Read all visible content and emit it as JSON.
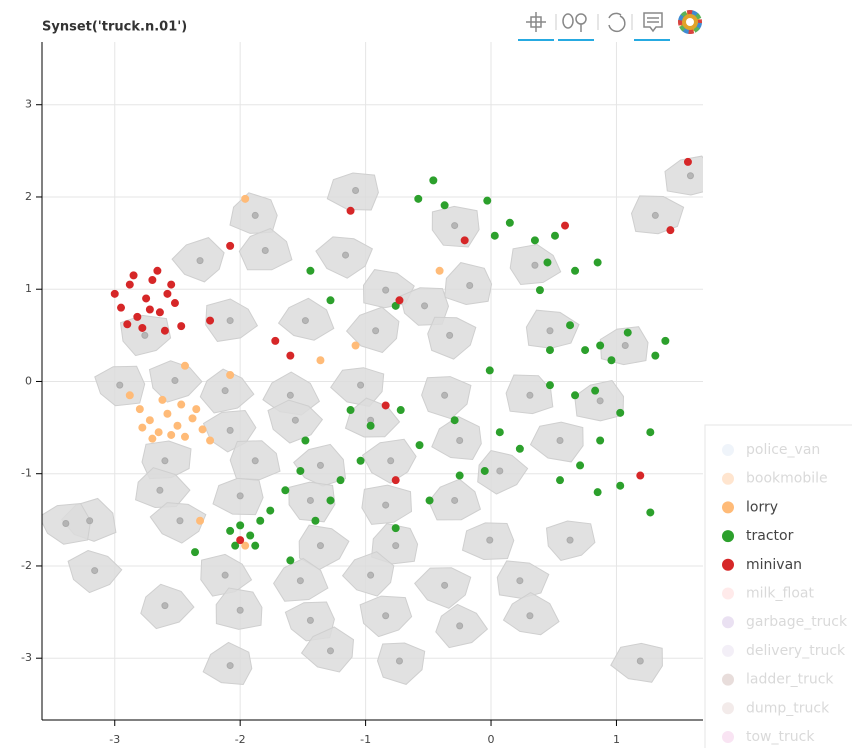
{
  "chart_data": {
    "type": "scatter",
    "title": "Synset('truck.n.01')",
    "xlim": [
      -3.58,
      1.69
    ],
    "ylim": [
      -3.67,
      3.68
    ],
    "xticks": [
      -3,
      -2,
      -1,
      0,
      1
    ],
    "yticks": [
      -3,
      -2,
      -1,
      0,
      1,
      2,
      3
    ],
    "grid": true,
    "series": [
      {
        "color": "#999999",
        "x": [
          -1.88,
          -1.08,
          -0.29,
          0.35,
          -1.8,
          -2.32,
          -1.16,
          -0.84,
          -0.17,
          -0.53,
          -2.76,
          -2.08,
          -1.48,
          -0.92,
          -0.33,
          0.47,
          1.07,
          -2.96,
          -2.52,
          -2.12,
          -1.6,
          -1.04,
          -0.37,
          0.31,
          0.87,
          -2.08,
          -1.56,
          -0.96,
          -0.25,
          0.55,
          -2.6,
          -1.88,
          -1.36,
          -0.8,
          0.07,
          -2.64,
          -2.0,
          -1.44,
          -0.84,
          -0.29,
          -3.2,
          -2.48,
          -1.36,
          -0.76,
          -0.01,
          0.63,
          -2.12,
          -1.52,
          -0.96,
          -0.37,
          0.23,
          -2.0,
          -1.44,
          -0.84,
          -0.25,
          0.31,
          -1.28,
          -0.73,
          1.31,
          1.59,
          -3.39,
          -3.16,
          -2.6,
          -2.08,
          1.19
        ],
        "y": [
          1.8,
          2.07,
          1.69,
          1.26,
          1.42,
          1.31,
          1.37,
          0.99,
          1.04,
          0.82,
          0.5,
          0.66,
          0.66,
          0.55,
          0.5,
          0.55,
          0.39,
          -0.04,
          0.01,
          -0.1,
          -0.15,
          -0.04,
          -0.15,
          -0.15,
          -0.21,
          -0.53,
          -0.42,
          -0.42,
          -0.64,
          -0.64,
          -0.86,
          -0.86,
          -0.91,
          -0.86,
          -0.97,
          -1.18,
          -1.24,
          -1.29,
          -1.34,
          -1.29,
          -1.51,
          -1.51,
          -1.78,
          -1.78,
          -1.72,
          -1.72,
          -2.1,
          -2.16,
          -2.1,
          -2.21,
          -2.16,
          -2.48,
          -2.59,
          -2.54,
          -2.65,
          -2.54,
          -2.92,
          -3.03,
          1.8,
          2.23,
          -1.54,
          -2.05,
          -2.43,
          -3.08,
          -3.03
        ]
      },
      {
        "name": "police_van",
        "color": "#aec7e8",
        "visible": false,
        "x": [],
        "y": []
      },
      {
        "name": "bookmobile",
        "color": "#ff7f0e",
        "visible": false,
        "x": [],
        "y": []
      },
      {
        "name": "lorry",
        "color": "#ffbb78",
        "visible": true,
        "x": [
          -2.88,
          -2.8,
          -2.72,
          -2.65,
          -2.58,
          -2.5,
          -2.44,
          -2.38,
          -2.3,
          -2.24,
          -2.78,
          -2.62,
          -2.47,
          -2.35,
          -2.7,
          -2.55,
          -1.96,
          -2.44,
          -2.08,
          -1.36,
          -1.08,
          -0.41,
          -2.32,
          -1.96
        ],
        "y": [
          -0.15,
          -0.3,
          -0.42,
          -0.55,
          -0.35,
          -0.48,
          -0.6,
          -0.4,
          -0.52,
          -0.64,
          -0.5,
          -0.2,
          -0.25,
          -0.3,
          -0.62,
          -0.58,
          1.98,
          0.17,
          0.07,
          0.23,
          0.39,
          1.2,
          -1.51,
          -1.78
        ]
      },
      {
        "name": "tractor",
        "color": "#2ca02c",
        "visible": true,
        "x": [
          -0.46,
          -0.58,
          -0.37,
          -0.03,
          0.15,
          0.03,
          0.35,
          0.51,
          0.45,
          0.67,
          0.85,
          0.39,
          -1.44,
          -1.28,
          -0.76,
          0.47,
          0.63,
          0.75,
          0.87,
          1.09,
          0.96,
          1.31,
          1.39,
          -0.01,
          0.47,
          0.67,
          0.83,
          1.03,
          1.27,
          0.87,
          0.71,
          0.55,
          0.85,
          1.27,
          0.23,
          0.07,
          -0.05,
          -0.29,
          -0.57,
          -0.72,
          -0.96,
          -1.12,
          -1.04,
          -1.2,
          -1.28,
          -1.4,
          -1.48,
          -1.52,
          -1.64,
          -1.76,
          -2.0,
          -2.08,
          -1.92,
          -1.84,
          -2.04,
          -1.88,
          -2.36,
          -1.6,
          -0.76,
          -0.49,
          -0.25,
          1.03
        ],
        "y": [
          2.18,
          1.98,
          1.91,
          1.96,
          1.72,
          1.58,
          1.53,
          1.58,
          1.29,
          1.2,
          1.29,
          0.99,
          1.2,
          0.88,
          0.82,
          0.34,
          0.61,
          0.34,
          0.39,
          0.53,
          0.23,
          0.28,
          0.44,
          0.12,
          -0.04,
          -0.15,
          -0.1,
          -0.34,
          -0.55,
          -0.64,
          -0.91,
          -1.07,
          -1.2,
          -1.42,
          -0.73,
          -0.55,
          -0.97,
          -0.42,
          -0.69,
          -0.31,
          -0.48,
          -0.31,
          -0.86,
          -1.07,
          -1.29,
          -1.51,
          -0.64,
          -0.97,
          -1.18,
          -1.4,
          -1.56,
          -1.62,
          -1.67,
          -1.51,
          -1.78,
          -1.78,
          -1.85,
          -1.94,
          -1.59,
          -1.29,
          -1.02,
          -1.13
        ]
      },
      {
        "name": "minivan",
        "color": "#d62728",
        "visible": true,
        "x": [
          -3.0,
          -2.95,
          -2.88,
          -2.82,
          -2.75,
          -2.7,
          -2.64,
          -2.58,
          -2.52,
          -2.47,
          -2.9,
          -2.78,
          -2.66,
          -2.55,
          -2.85,
          -2.72,
          -2.6,
          -2.08,
          -1.12,
          0.59,
          -1.6,
          -0.84,
          -0.76,
          -2.0,
          1.19,
          1.57,
          1.43,
          -0.73,
          -0.21,
          -2.24,
          -1.72
        ],
        "y": [
          0.95,
          0.8,
          1.05,
          0.7,
          0.9,
          1.1,
          0.75,
          0.95,
          0.85,
          0.6,
          0.62,
          0.58,
          1.2,
          1.05,
          1.15,
          0.78,
          0.55,
          1.47,
          1.85,
          1.69,
          0.28,
          -0.26,
          -1.07,
          -1.72,
          -1.02,
          2.38,
          1.64,
          0.88,
          1.53,
          0.66,
          0.44
        ]
      },
      {
        "name": "milk_float",
        "color": "#ff9896",
        "visible": false,
        "x": [],
        "y": []
      },
      {
        "name": "garbage_truck",
        "color": "#9467bd",
        "visible": false,
        "x": [],
        "y": []
      },
      {
        "name": "delivery_truck",
        "color": "#c5b0d5",
        "visible": false,
        "x": [],
        "y": []
      },
      {
        "name": "ladder_truck",
        "color": "#8c564b",
        "visible": false,
        "x": [],
        "y": []
      },
      {
        "name": "dump_truck",
        "color": "#c49c94",
        "visible": false,
        "x": [],
        "y": []
      },
      {
        "name": "tow_truck",
        "color": "#e377c2",
        "visible": false,
        "x": [],
        "y": []
      }
    ]
  }
}
